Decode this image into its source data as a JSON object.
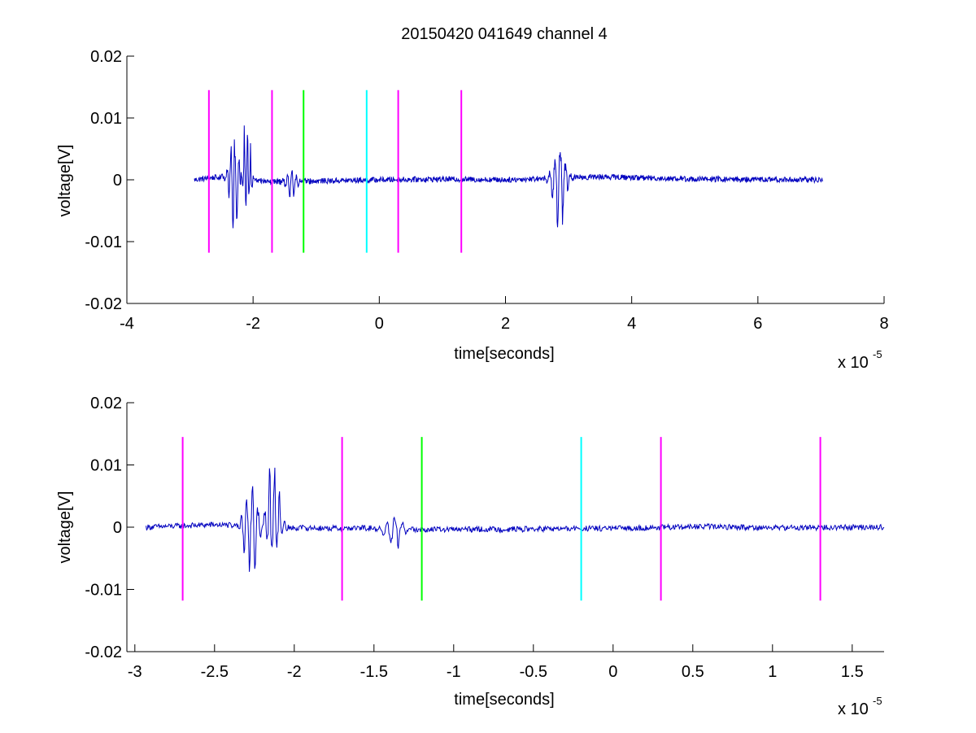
{
  "figure": {
    "title": "20150420 041649 channel 4"
  },
  "chart_data": [
    {
      "type": "line",
      "xlabel": "time[seconds]",
      "ylabel": "voltage[V]",
      "x_exponent_label": "x 10",
      "x_exponent_power": "-5",
      "xlim": [
        -4,
        8
      ],
      "ylim": [
        -0.02,
        0.02
      ],
      "x_ticks": [
        "-4",
        "-2",
        "0",
        "2",
        "4",
        "6",
        "8"
      ],
      "x_tick_values": [
        -4,
        -2,
        0,
        2,
        4,
        6,
        8
      ],
      "y_ticks": [
        "-0.02",
        "-0.01",
        "0",
        "0.01",
        "0.02"
      ],
      "y_tick_values": [
        -0.02,
        -0.01,
        0,
        0.01,
        0.02
      ],
      "grid": false,
      "series": [
        {
          "color": "#0000bf",
          "x_range": [
            -2.93,
            7.03
          ],
          "baseline_points": [
            [
              -2.93,
              0.0
            ],
            [
              -2.5,
              0.0005
            ],
            [
              -2.0,
              -0.0002
            ],
            [
              -1.5,
              -0.0003
            ],
            [
              -1.0,
              -0.0002
            ],
            [
              0.0,
              0.0
            ],
            [
              1.0,
              0.0001
            ],
            [
              2.0,
              0.0
            ],
            [
              2.6,
              0.0002
            ],
            [
              3.5,
              0.0005
            ],
            [
              5.0,
              0.0001
            ],
            [
              7.03,
              0.0
            ]
          ],
          "bursts": [
            {
              "center": -2.3,
              "width": 0.09,
              "peak": 0.0077,
              "trough": -0.0097
            },
            {
              "center": -2.1,
              "width": 0.07,
              "peak": 0.013,
              "trough": -0.0045
            },
            {
              "center": -1.4,
              "width": 0.1,
              "peak": 0.0018,
              "trough": -0.0034
            },
            {
              "center": 2.85,
              "width": 0.12,
              "peak": 0.0057,
              "trough": -0.0107
            }
          ]
        }
      ],
      "markers": [
        {
          "x": -2.7,
          "color": "#ff00ff",
          "ymin": -0.0118,
          "ymax": 0.0145
        },
        {
          "x": -1.7,
          "color": "#ff00ff",
          "ymin": -0.0118,
          "ymax": 0.0145
        },
        {
          "x": -1.2,
          "color": "#00ff00",
          "ymin": -0.0118,
          "ymax": 0.0145
        },
        {
          "x": -0.2,
          "color": "#00ffff",
          "ymin": -0.0118,
          "ymax": 0.0145
        },
        {
          "x": 0.3,
          "color": "#ff00ff",
          "ymin": -0.0118,
          "ymax": 0.0145
        },
        {
          "x": 1.3,
          "color": "#ff00ff",
          "ymin": -0.0118,
          "ymax": 0.0145
        }
      ]
    },
    {
      "type": "line",
      "xlabel": "time[seconds]",
      "ylabel": "voltage[V]",
      "x_exponent_label": "x 10",
      "x_exponent_power": "-5",
      "xlim": [
        -3.05,
        1.7
      ],
      "ylim": [
        -0.02,
        0.02
      ],
      "x_ticks": [
        "-3",
        "-2.5",
        "-2",
        "-1.5",
        "-1",
        "-0.5",
        "0",
        "0.5",
        "1",
        "1.5"
      ],
      "x_tick_values": [
        -3,
        -2.5,
        -2,
        -1.5,
        -1,
        -0.5,
        0,
        0.5,
        1,
        1.5
      ],
      "y_ticks": [
        "-0.02",
        "-0.01",
        "0",
        "0.01",
        "0.02"
      ],
      "y_tick_values": [
        -0.02,
        -0.01,
        0,
        0.01,
        0.02
      ],
      "grid": false,
      "series": [
        {
          "color": "#0000bf",
          "x_range": [
            -2.93,
            1.7
          ],
          "baseline_points": [
            [
              -2.93,
              0.0
            ],
            [
              -2.5,
              0.0004
            ],
            [
              -2.0,
              -0.0001
            ],
            [
              -1.7,
              -0.0002
            ],
            [
              -1.5,
              -0.0001
            ],
            [
              -1.2,
              -0.0004
            ],
            [
              -0.5,
              -0.0003
            ],
            [
              0.0,
              -0.0002
            ],
            [
              0.6,
              0.0001
            ],
            [
              1.0,
              -0.0001
            ],
            [
              1.7,
              0.0
            ]
          ],
          "bursts": [
            {
              "center": -2.27,
              "width": 0.05,
              "peak": 0.0077,
              "trough": -0.0096
            },
            {
              "center": -2.13,
              "width": 0.045,
              "peak": 0.0131,
              "trough": -0.0046
            },
            {
              "center": -1.38,
              "width": 0.07,
              "peak": 0.0019,
              "trough": -0.0035
            }
          ]
        }
      ],
      "markers": [
        {
          "x": -2.7,
          "color": "#ff00ff",
          "ymin": -0.0118,
          "ymax": 0.0145
        },
        {
          "x": -1.7,
          "color": "#ff00ff",
          "ymin": -0.0118,
          "ymax": 0.0145
        },
        {
          "x": -1.2,
          "color": "#00ff00",
          "ymin": -0.0118,
          "ymax": 0.0145
        },
        {
          "x": -0.2,
          "color": "#00ffff",
          "ymin": -0.0118,
          "ymax": 0.0145
        },
        {
          "x": 0.3,
          "color": "#ff00ff",
          "ymin": -0.0118,
          "ymax": 0.0145
        },
        {
          "x": 1.3,
          "color": "#ff00ff",
          "ymin": -0.0118,
          "ymax": 0.0145
        }
      ]
    }
  ]
}
